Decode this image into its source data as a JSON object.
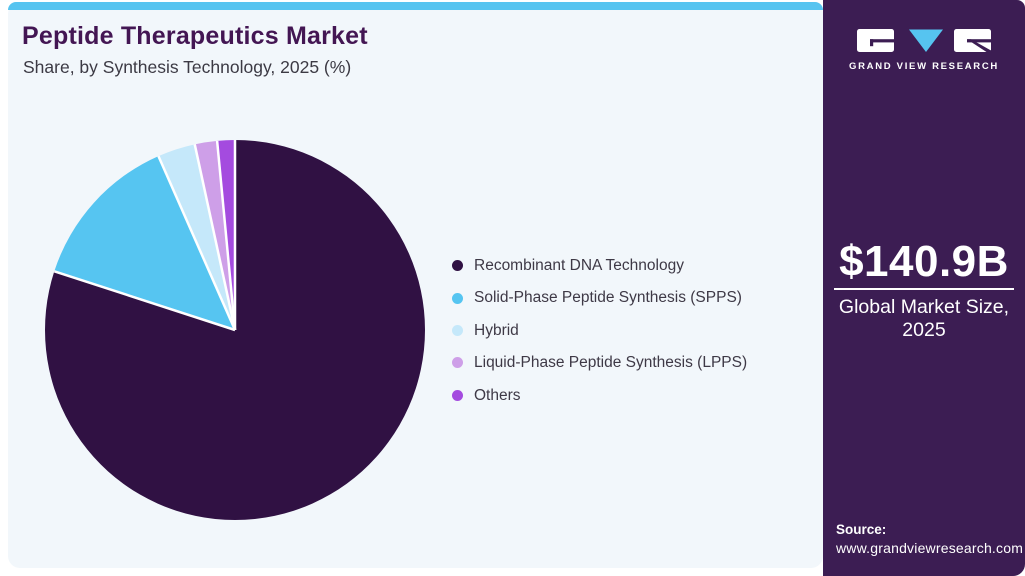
{
  "header": {
    "title": "Peptide Therapeutics Market",
    "subtitle": "Share, by Synthesis Technology, 2025 (%)"
  },
  "chart_data": {
    "type": "pie",
    "title": "Peptide Therapeutics Market Share, by Synthesis Technology, 2025 (%)",
    "unit": "%",
    "categories": [
      "Recombinant DNA Technology",
      "Solid-Phase Peptide Synthesis (SPPS)",
      "Hybrid",
      "Liquid-Phase Peptide Synthesis (LPPS)",
      "Others"
    ],
    "values": [
      80.0,
      13.4,
      3.2,
      1.9,
      1.5
    ],
    "colors": [
      "#301143",
      "#56C5F1",
      "#C5E8FA",
      "#CE9FE8",
      "#A44BDF"
    ],
    "start_angle_deg": 0,
    "direction": "clockwise",
    "legend_position": "right",
    "slice_divider_color": "#FFFFFF",
    "data_labels": false
  },
  "legend": {
    "items": [
      {
        "label": "Recombinant DNA Technology",
        "color": "#301143"
      },
      {
        "label": "Solid-Phase Peptide Synthesis (SPPS)",
        "color": "#56C5F1"
      },
      {
        "label": "Hybrid",
        "color": "#C5E8FA"
      },
      {
        "label": "Liquid-Phase Peptide Synthesis (LPPS)",
        "color": "#CE9FE8"
      },
      {
        "label": "Others",
        "color": "#A44BDF"
      }
    ]
  },
  "sidebar": {
    "brand": {
      "name": "GRAND VIEW RESEARCH"
    },
    "market_size": {
      "value": "$140.9B",
      "label_line1": "Global Market Size,",
      "label_line2": "2025"
    },
    "source": {
      "label": "Source:",
      "url": "www.grandviewresearch.com"
    },
    "bg_color": "#3C1D53"
  },
  "theme": {
    "topbar_color": "#56C4F0",
    "card_bg": "#F2F7FB",
    "title_color": "#431653",
    "legend_text_color": "#3E3946",
    "panel_bg": "#3C1D53",
    "logo_triangle_blue": "#56C4F0"
  }
}
